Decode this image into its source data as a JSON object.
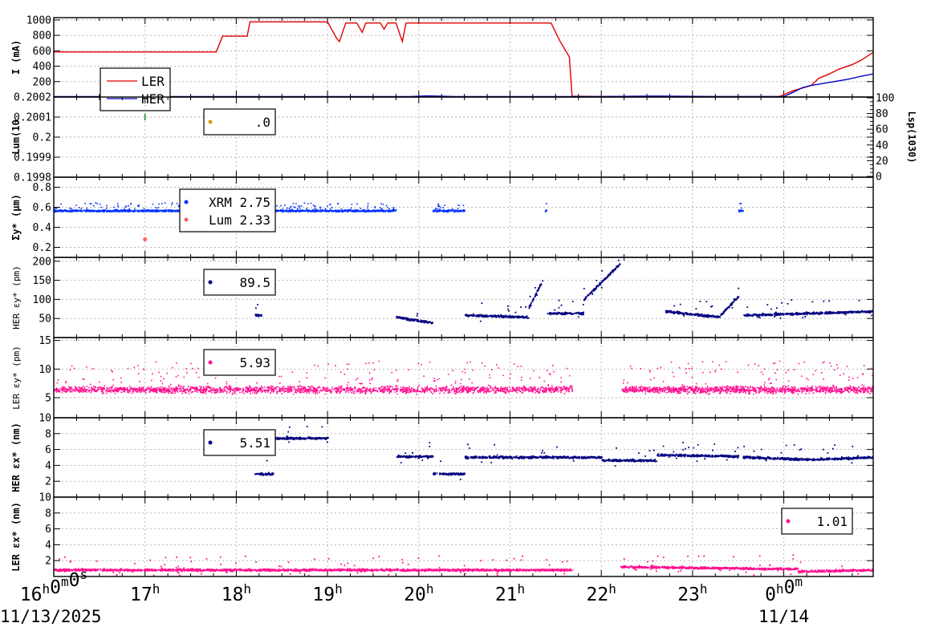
{
  "chart_data": {
    "type": "scatter",
    "x_axis": {
      "ticks": [
        {
          "time": "16:00:00",
          "label": "16h0m0s"
        },
        {
          "time": "17:00",
          "label": "17h"
        },
        {
          "time": "18:00",
          "label": "18h"
        },
        {
          "time": "19:00",
          "label": "19h"
        },
        {
          "time": "20:00",
          "label": "20h"
        },
        {
          "time": "21:00",
          "label": "21h"
        },
        {
          "time": "22:00",
          "label": "22h"
        },
        {
          "time": "23:00",
          "label": "23h"
        },
        {
          "time": "00:00",
          "label": "0h0m"
        }
      ],
      "dates": [
        "11/13/2025",
        "11/14"
      ],
      "range_hours": [
        16,
        24.98
      ]
    },
    "panels": [
      {
        "id": "current",
        "ylabel": "I (mA)",
        "ylim": [
          0,
          1030
        ],
        "yticks": [
          200,
          400,
          600,
          800,
          1000
        ],
        "legend": [
          "LER",
          "HER"
        ],
        "series": [
          {
            "name": "LER",
            "color": "#e00000",
            "points": [
              [
                16.0,
                585
              ],
              [
                17.78,
                585
              ],
              [
                17.85,
                790
              ],
              [
                18.12,
                790
              ],
              [
                18.15,
                975
              ],
              [
                19.0,
                975
              ],
              [
                19.1,
                760
              ],
              [
                19.13,
                720
              ],
              [
                19.2,
                960
              ],
              [
                19.32,
                960
              ],
              [
                19.38,
                840
              ],
              [
                19.42,
                960
              ],
              [
                19.58,
                960
              ],
              [
                19.62,
                880
              ],
              [
                19.66,
                960
              ],
              [
                19.75,
                960
              ],
              [
                19.82,
                720
              ],
              [
                19.86,
                960
              ],
              [
                21.45,
                960
              ],
              [
                21.55,
                720
              ],
              [
                21.65,
                520
              ],
              [
                21.68,
                10
              ],
              [
                22.0,
                5
              ],
              [
                23.0,
                5
              ],
              [
                23.95,
                5
              ],
              [
                24.1,
                80
              ],
              [
                24.3,
                150
              ],
              [
                24.38,
                240
              ],
              [
                24.5,
                300
              ],
              [
                24.6,
                360
              ],
              [
                24.75,
                420
              ],
              [
                24.85,
                480
              ],
              [
                24.98,
                580
              ]
            ]
          },
          {
            "name": "HER",
            "color": "#0000c8",
            "points": [
              [
                16.0,
                5
              ],
              [
                19.9,
                5
              ],
              [
                20.1,
                15
              ],
              [
                20.4,
                5
              ],
              [
                22.0,
                5
              ],
              [
                22.6,
                12
              ],
              [
                23.3,
                5
              ],
              [
                24.0,
                5
              ],
              [
                24.1,
                60
              ],
              [
                24.2,
                120
              ],
              [
                24.3,
                150
              ],
              [
                24.4,
                170
              ],
              [
                24.55,
                200
              ],
              [
                24.7,
                230
              ],
              [
                24.85,
                270
              ],
              [
                24.98,
                300
              ]
            ]
          }
        ]
      },
      {
        "id": "luminosity",
        "ylabel": "Lum(10",
        "ylim": [
          0.1998,
          0.2002
        ],
        "yticks": [
          "0.1998",
          "0.1999",
          "0.2",
          "0.2001",
          "0.2002"
        ],
        "right_ylabel": "Lsp(1030)",
        "right_ylim": [
          0,
          100
        ],
        "right_yticks": [
          "0",
          "20",
          "40",
          "60",
          "80",
          "100"
        ],
        "legend": [
          ".0"
        ],
        "legend_color": "#d4a000",
        "marks": [
          {
            "x": 17.0,
            "y": 0.2001,
            "color": "#008000"
          }
        ]
      },
      {
        "id": "sigma_y",
        "ylabel": "Σy* (μm)",
        "ylim": [
          0.1,
          0.9
        ],
        "yticks": [
          "0.2",
          "0.4",
          "0.6",
          "0.8"
        ],
        "legend": [
          "XRM 2.75",
          "Lum 2.33"
        ],
        "series": [
          {
            "name": "XRM",
            "color": "#0030ff",
            "base": 0.57,
            "spread": 0.04,
            "ranges": [
              [
                16.0,
                18.2
              ],
              [
                18.27,
                19.75
              ],
              [
                20.15,
                20.5
              ],
              [
                21.38,
                21.4
              ],
              [
                23.5,
                23.55
              ]
            ]
          },
          {
            "name": "Lum",
            "color": "#ff6060",
            "points": [
              [
                17.0,
                0.28
              ]
            ]
          }
        ]
      },
      {
        "id": "her_emit_y",
        "ylabel": "HER εy* (pm)",
        "ylim": [
          0,
          210
        ],
        "yticks": [
          "50",
          "100",
          "150",
          "200"
        ],
        "legend": [
          "89.5"
        ],
        "series": [
          {
            "name": "HER εy*",
            "color": "#000080",
            "segments": [
              {
                "x": [
                  18.2,
                  18.27
                ],
                "y": [
                  60,
                  60
                ]
              },
              {
                "x": [
                  19.75,
                  20.15
                ],
                "y": [
                  55,
                  40
                ]
              },
              {
                "x": [
                  20.5,
                  21.2
                ],
                "y": [
                  60,
                  55
                ]
              },
              {
                "x": [
                  21.2,
                  21.35
                ],
                "y": [
                  80,
                  150
                ]
              },
              {
                "x": [
                  21.4,
                  21.8
                ],
                "y": [
                  65,
                  65
                ]
              },
              {
                "x": [
                  21.8,
                  22.2
                ],
                "y": [
                  100,
                  195
                ]
              },
              {
                "x": [
                  22.7,
                  23.3
                ],
                "y": [
                  70,
                  55
                ]
              },
              {
                "x": [
                  23.3,
                  23.5
                ],
                "y": [
                  60,
                  110
                ]
              },
              {
                "x": [
                  23.55,
                  24.98
                ],
                "y": [
                  60,
                  70
                ]
              }
            ]
          }
        ]
      },
      {
        "id": "ler_emit_y",
        "ylabel": "LER εy* (pm)",
        "ylim": [
          1.5,
          15.5
        ],
        "yticks": [
          "5",
          "10",
          "15"
        ],
        "legend": [
          "5.93"
        ],
        "series": [
          {
            "name": "LER εy*",
            "color": "#ff1090",
            "base": 6.5,
            "spread": 2.5,
            "ranges": [
              [
                16.0,
                21.68
              ],
              [
                22.22,
                24.98
              ]
            ]
          }
        ]
      },
      {
        "id": "her_emit_x",
        "ylabel": "HER εx* (nm)",
        "ylim": [
          0,
          10
        ],
        "yticks": [
          "2",
          "4",
          "6",
          "8",
          "10"
        ],
        "legend": [
          "5.51"
        ],
        "series": [
          {
            "name": "HER εx*",
            "color": "#000080",
            "segments": [
              {
                "x": [
                  18.2,
                  18.4
                ],
                "y": [
                  3,
                  3
                ]
              },
              {
                "x": [
                  18.4,
                  19.0
                ],
                "y": [
                  7.5,
                  7.5
                ]
              },
              {
                "x": [
                  19.75,
                  20.15
                ],
                "y": [
                  5.2,
                  5.2
                ]
              },
              {
                "x": [
                  20.15,
                  20.5
                ],
                "y": [
                  3,
                  3
                ]
              },
              {
                "x": [
                  20.5,
                  22.0
                ],
                "y": [
                  5.1,
                  5.1
                ]
              },
              {
                "x": [
                  22.0,
                  22.6
                ],
                "y": [
                  4.7,
                  4.7
                ]
              },
              {
                "x": [
                  22.6,
                  23.5
                ],
                "y": [
                  5.4,
                  5.2
                ]
              },
              {
                "x": [
                  23.55,
                  24.3
                ],
                "y": [
                  5.1,
                  4.8
                ]
              },
              {
                "x": [
                  24.3,
                  24.98
                ],
                "y": [
                  4.8,
                  5.1
                ]
              }
            ]
          }
        ]
      },
      {
        "id": "ler_emit_x",
        "ylabel": "LER εx* (nm)",
        "ylim": [
          0,
          10
        ],
        "yticks": [
          "2",
          "4",
          "6",
          "8",
          "10"
        ],
        "legend": [
          "1.01"
        ],
        "series": [
          {
            "name": "LER εx*",
            "color": "#ff1090",
            "segments": [
              {
                "x": [
                  16.0,
                  21.68
                ],
                "y": [
                  0.9,
                  0.9
                ]
              },
              {
                "x": [
                  22.2,
                  23.6
                ],
                "y": [
                  1.3,
                  1.1
                ]
              },
              {
                "x": [
                  23.6,
                  24.15
                ],
                "y": [
                  1.05,
                  1.05
                ]
              },
              {
                "x": [
                  24.15,
                  24.98
                ],
                "y": [
                  0.7,
                  0.9
                ]
              }
            ]
          }
        ]
      }
    ]
  }
}
